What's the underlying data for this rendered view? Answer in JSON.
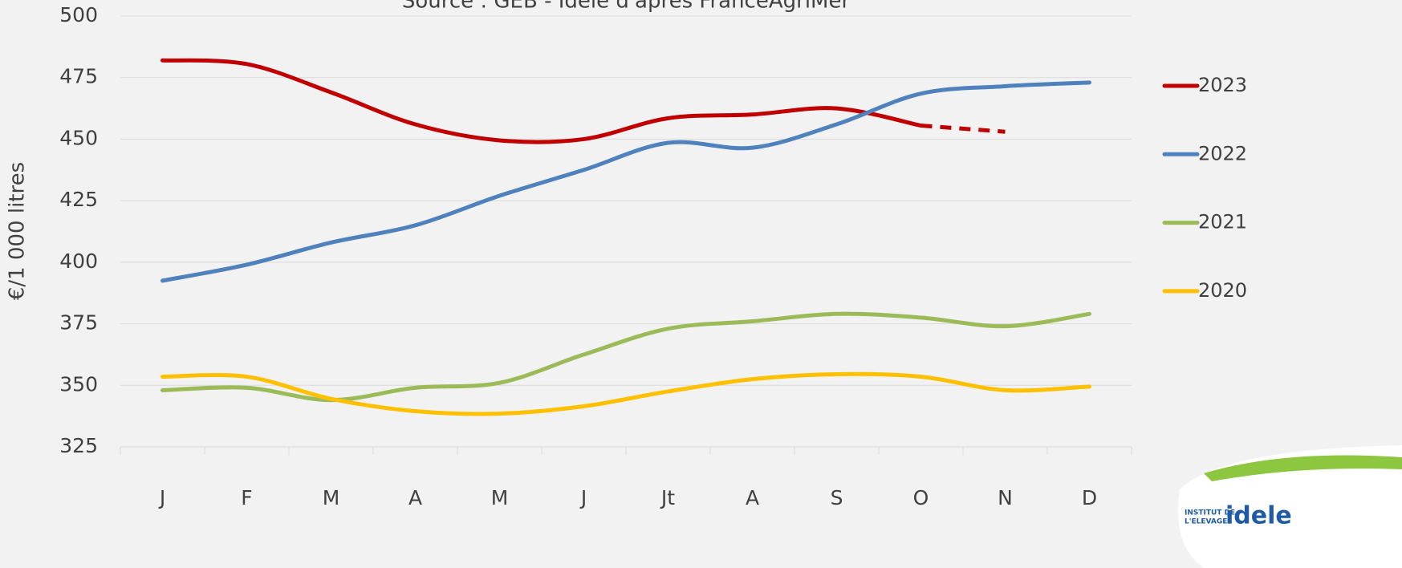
{
  "chart_data": {
    "type": "line",
    "title": "Source : GEB - Idele d'après FranceAgriMer",
    "y_label": "€/1 000 litres",
    "categories": [
      "J",
      "F",
      "M",
      "A",
      "M",
      "J",
      "Jt",
      "A",
      "S",
      "O",
      "N",
      "D"
    ],
    "ylim": [
      325,
      500
    ],
    "yticks": [
      325,
      350,
      375,
      400,
      425,
      450,
      475,
      500
    ],
    "grid": true,
    "smooth": true,
    "legend": "right",
    "series": [
      {
        "name": "2023",
        "color": "#c00000",
        "dashed_last_segment": true,
        "values": [
          482,
          480.5,
          469,
          456,
          449.5,
          450,
          458.5,
          460,
          462.5,
          455.5,
          453,
          null
        ]
      },
      {
        "name": "2022",
        "color": "#4f81bd",
        "values": [
          392.5,
          399,
          408,
          415,
          427,
          437.5,
          448.5,
          446.5,
          456,
          468.5,
          471.5,
          473
        ]
      },
      {
        "name": "2021",
        "color": "#9bbb59",
        "values": [
          348,
          349,
          344,
          349,
          351,
          362.5,
          373,
          376,
          379,
          377.5,
          374,
          379
        ]
      },
      {
        "name": "2020",
        "color": "#ffc000",
        "values": [
          353.5,
          353.5,
          344.5,
          339.5,
          338.5,
          341.5,
          347.5,
          352.5,
          354.5,
          353.5,
          348,
          349.5
        ]
      }
    ]
  },
  "logo": {
    "line1": "INSTITUT DE",
    "line2": "L'ELEVAGE",
    "brand": "idele"
  }
}
